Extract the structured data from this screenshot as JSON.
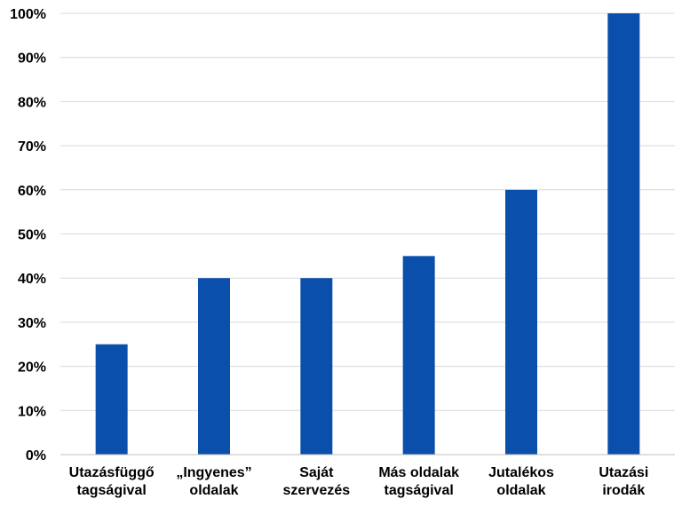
{
  "chart_data": {
    "type": "bar",
    "title": "",
    "xlabel": "",
    "ylabel": "",
    "categories": [
      [
        "Utazásfüggő",
        "tagságival"
      ],
      [
        "„Ingyenes”",
        "oldalak"
      ],
      [
        "Saját",
        "szervezés"
      ],
      [
        "Más oldalak",
        "tagságival"
      ],
      [
        "Jutalékos",
        "oldalak"
      ],
      [
        "Utazási",
        "irodák"
      ]
    ],
    "values": [
      25,
      40,
      40,
      45,
      60,
      100
    ],
    "ylim": [
      0,
      100
    ],
    "yticks": [
      "0%",
      "10%",
      "20%",
      "30%",
      "40%",
      "50%",
      "60%",
      "70%",
      "80%",
      "90%",
      "100%"
    ],
    "bar_color": "#0b4fad",
    "grid": true,
    "legend": "none"
  }
}
